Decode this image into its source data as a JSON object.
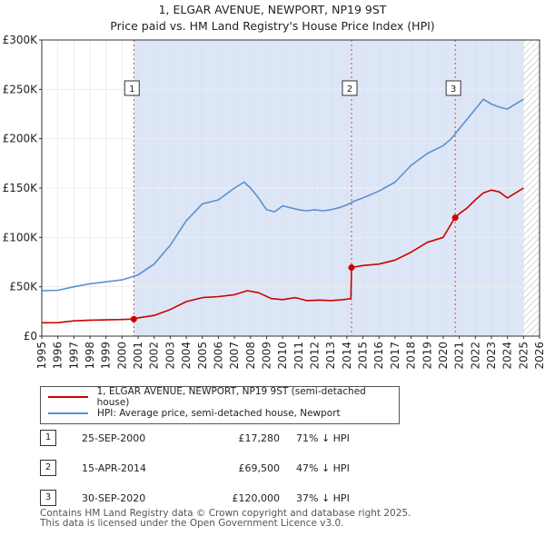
{
  "header": {
    "title_line1": "1, ELGAR AVENUE, NEWPORT, NP19 9ST",
    "title_line2": "Price paid vs. HM Land Registry's House Price Index (HPI)"
  },
  "colors": {
    "price_paid": "#cc0000",
    "hpi": "#5b8fd0",
    "sale_band": "#dde6f6",
    "hatch": "#b0b0b0"
  },
  "chart_data": {
    "type": "line",
    "title": "1, ELGAR AVENUE, NEWPORT, NP19 9ST",
    "subtitle": "Price paid vs. HM Land Registry's House Price Index (HPI)",
    "xlabel": "",
    "ylabel": "",
    "xlim": [
      1995,
      2026
    ],
    "ylim": [
      0,
      300000
    ],
    "y_ticks": [
      0,
      50000,
      100000,
      150000,
      200000,
      250000,
      300000
    ],
    "y_tick_labels": [
      "£0",
      "£50K",
      "£100K",
      "£150K",
      "£200K",
      "£250K",
      "£300K"
    ],
    "x_ticks": [
      1995,
      1996,
      1997,
      1998,
      1999,
      2000,
      2001,
      2002,
      2003,
      2004,
      2005,
      2006,
      2007,
      2008,
      2009,
      2010,
      2011,
      2012,
      2013,
      2014,
      2015,
      2016,
      2017,
      2018,
      2019,
      2020,
      2021,
      2022,
      2023,
      2024,
      2025,
      2026
    ],
    "x_tick_labels": [
      "1995",
      "1996",
      "1997",
      "1998",
      "1999",
      "2000",
      "2001",
      "2002",
      "2003",
      "2004",
      "2005",
      "2006",
      "2007",
      "2008",
      "2009",
      "2010",
      "2011",
      "2012",
      "2013",
      "2014",
      "2015",
      "2016",
      "2017",
      "2018",
      "2019",
      "2020",
      "2021",
      "2022",
      "2023",
      "2024",
      "2025",
      "2026"
    ],
    "grid": true,
    "shaded_from": 2000.73,
    "forecast_hatch_from": 2025.0,
    "series": [
      {
        "name": "1, ELGAR AVENUE, NEWPORT, NP19 9ST (semi-detached house)",
        "color": "#cc0000",
        "x": [
          1995.0,
          1996.0,
          1997.0,
          1998.0,
          1999.0,
          2000.0,
          2000.73,
          2001.0,
          2002.0,
          2003.0,
          2004.0,
          2005.0,
          2006.0,
          2007.0,
          2007.8,
          2008.5,
          2009.3,
          2010.0,
          2010.8,
          2011.5,
          2012.3,
          2013.0,
          2013.8,
          2014.25,
          2014.29,
          2015.0,
          2016.0,
          2017.0,
          2018.0,
          2019.0,
          2020.0,
          2020.73,
          2021.0,
          2021.5,
          2022.0,
          2022.5,
          2023.0,
          2023.5,
          2024.0,
          2024.5,
          2025.0
        ],
        "values": [
          13500,
          13600,
          15500,
          16200,
          16500,
          16800,
          17280,
          18500,
          21000,
          27000,
          35000,
          39000,
          40000,
          42000,
          46000,
          44000,
          38000,
          37000,
          39000,
          36000,
          36500,
          36000,
          37000,
          38000,
          69500,
          71500,
          73000,
          77000,
          85000,
          95000,
          100000,
          120000,
          124000,
          130000,
          138000,
          145000,
          148000,
          146000,
          140000,
          145000,
          150000
        ]
      },
      {
        "name": "HPI: Average price, semi-detached house, Newport",
        "color": "#5b8fd0",
        "x": [
          1995.0,
          1996.0,
          1997.0,
          1998.0,
          1999.0,
          2000.0,
          2001.0,
          2002.0,
          2003.0,
          2004.0,
          2005.0,
          2006.0,
          2007.0,
          2007.6,
          2008.0,
          2008.5,
          2009.0,
          2009.5,
          2010.0,
          2010.5,
          2011.0,
          2011.5,
          2012.0,
          2012.5,
          2013.0,
          2013.5,
          2014.0,
          2014.5,
          2015.0,
          2016.0,
          2017.0,
          2018.0,
          2019.0,
          2020.0,
          2020.5,
          2021.0,
          2021.5,
          2022.0,
          2022.5,
          2023.0,
          2023.5,
          2024.0,
          2024.5,
          2025.0
        ],
        "values": [
          46000,
          46500,
          50000,
          53000,
          55000,
          57000,
          62000,
          73000,
          92000,
          117000,
          134000,
          138000,
          150000,
          156000,
          150000,
          140000,
          128000,
          126000,
          132000,
          130000,
          128000,
          127000,
          128000,
          127000,
          128000,
          130000,
          133000,
          137000,
          140000,
          147000,
          156000,
          173000,
          185000,
          193000,
          200000,
          210000,
          220000,
          230000,
          240000,
          235000,
          232000,
          230000,
          235000,
          240000
        ]
      }
    ],
    "sales": [
      {
        "label": "1",
        "x": 2000.73,
        "price": 17280
      },
      {
        "label": "2",
        "x": 2014.29,
        "price": 69500
      },
      {
        "label": "3",
        "x": 2020.75,
        "price": 120000
      }
    ]
  },
  "legend": {
    "price_label": "1, ELGAR AVENUE, NEWPORT, NP19 9ST (semi-detached house)",
    "hpi_label": "HPI: Average price, semi-detached house, Newport"
  },
  "sales_table": [
    {
      "num": "1",
      "date": "25-SEP-2000",
      "price": "£17,280",
      "hpi": "71% ↓ HPI"
    },
    {
      "num": "2",
      "date": "15-APR-2014",
      "price": "£69,500",
      "hpi": "47% ↓ HPI"
    },
    {
      "num": "3",
      "date": "30-SEP-2020",
      "price": "£120,000",
      "hpi": "37% ↓ HPI"
    }
  ],
  "footer": {
    "line1": "Contains HM Land Registry data © Crown copyright and database right 2025.",
    "line2": "This data is licensed under the Open Government Licence v3.0."
  }
}
